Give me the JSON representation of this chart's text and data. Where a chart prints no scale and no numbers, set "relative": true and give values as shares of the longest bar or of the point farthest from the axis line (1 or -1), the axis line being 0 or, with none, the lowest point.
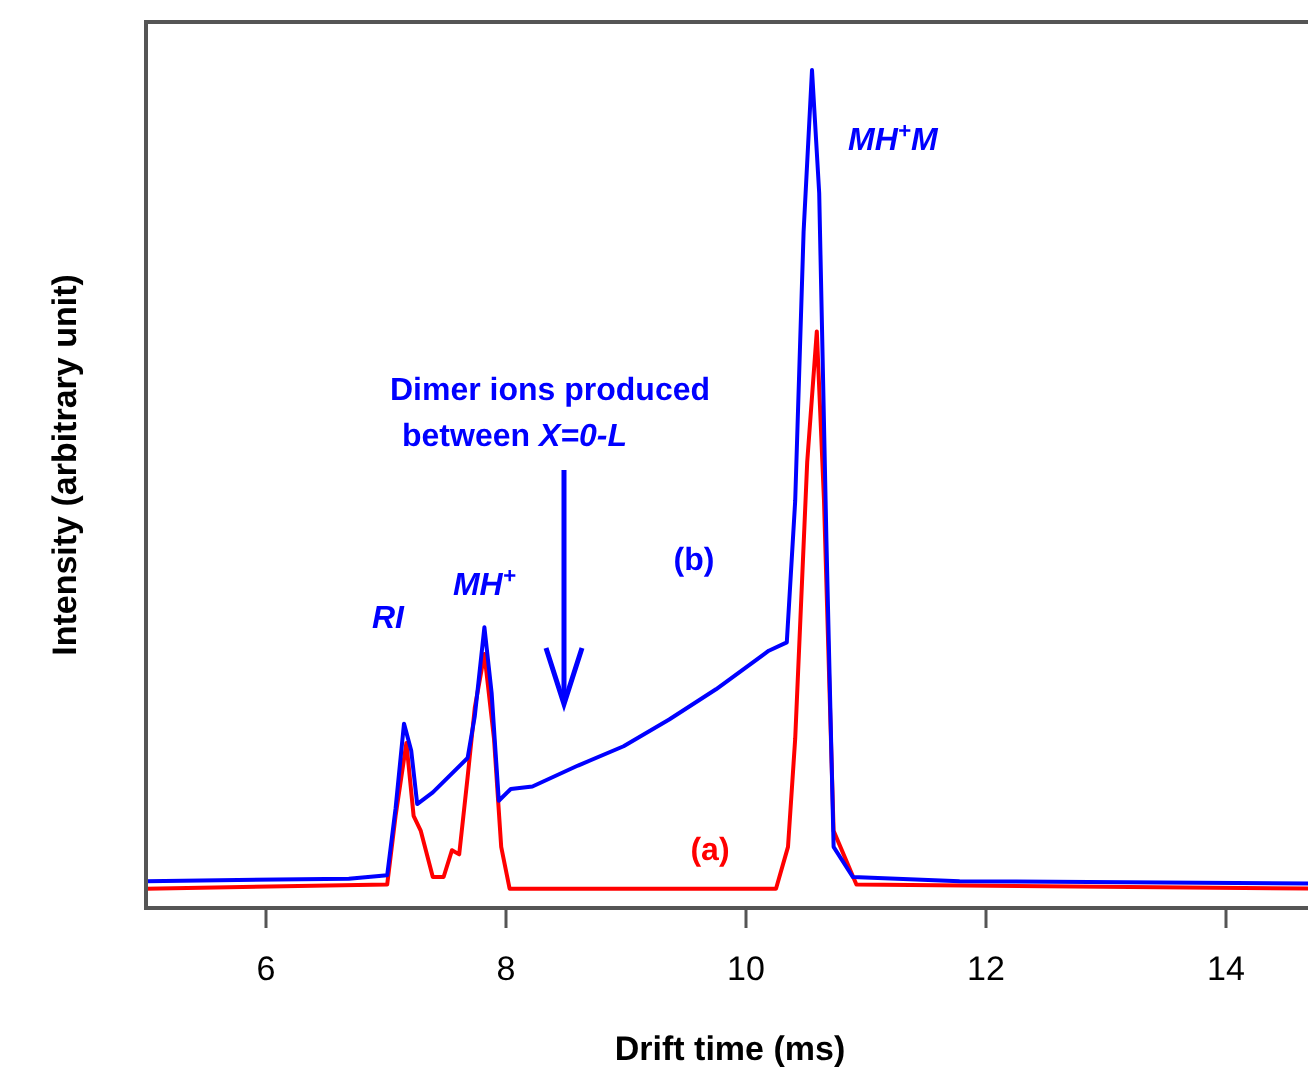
{
  "chart_data": {
    "type": "line",
    "xlabel": "Drift time (ms)",
    "ylabel": "Intensity (arbitrary unit)",
    "relative": true,
    "xlim": [
      5,
      14.8
    ],
    "xticks": [
      6,
      8,
      10,
      12,
      14
    ],
    "grid": false,
    "marker": "none",
    "line_style": "solid",
    "series": [
      {
        "name": "(a)",
        "color": "#ff0000",
        "x": [
          5.0,
          7.01,
          7.08,
          7.17,
          7.23,
          7.29,
          7.39,
          7.48,
          7.55,
          7.61,
          7.68,
          7.74,
          7.82,
          7.9,
          7.96,
          8.03,
          10.25,
          10.35,
          10.41,
          10.51,
          10.59,
          10.65,
          10.73,
          10.92,
          14.8
        ],
        "values": [
          0.023,
          0.028,
          0.11,
          0.197,
          0.11,
          0.092,
          0.037,
          0.037,
          0.069,
          0.064,
          0.156,
          0.239,
          0.303,
          0.202,
          0.073,
          0.023,
          0.023,
          0.073,
          0.202,
          0.532,
          0.688,
          0.486,
          0.092,
          0.028,
          0.023
        ]
      },
      {
        "name": "(b)",
        "color": "#0000ff",
        "x": [
          5.0,
          6.69,
          7.01,
          7.08,
          7.15,
          7.21,
          7.26,
          7.39,
          7.68,
          7.74,
          7.82,
          7.88,
          7.94,
          8.04,
          8.22,
          8.6,
          8.98,
          9.36,
          9.75,
          10.19,
          10.34,
          10.41,
          10.48,
          10.55,
          10.61,
          10.67,
          10.73,
          10.89,
          11.78,
          14.8
        ],
        "values": [
          0.032,
          0.035,
          0.039,
          0.119,
          0.22,
          0.188,
          0.124,
          0.138,
          0.179,
          0.229,
          0.335,
          0.257,
          0.128,
          0.142,
          0.145,
          0.17,
          0.193,
          0.225,
          0.261,
          0.307,
          0.317,
          0.486,
          0.807,
          1.0,
          0.853,
          0.44,
          0.073,
          0.037,
          0.032,
          0.029
        ]
      }
    ],
    "annotations": [
      {
        "text": "RI",
        "x": 7.15,
        "y": 0.22
      },
      {
        "text": "MH$^{+}$",
        "x": 7.82,
        "y": 0.335
      },
      {
        "text": "MH$^{+}$M",
        "x": 10.55,
        "y": 1.0
      },
      "Dimer ions produced between X=0-L"
    ]
  }
}
